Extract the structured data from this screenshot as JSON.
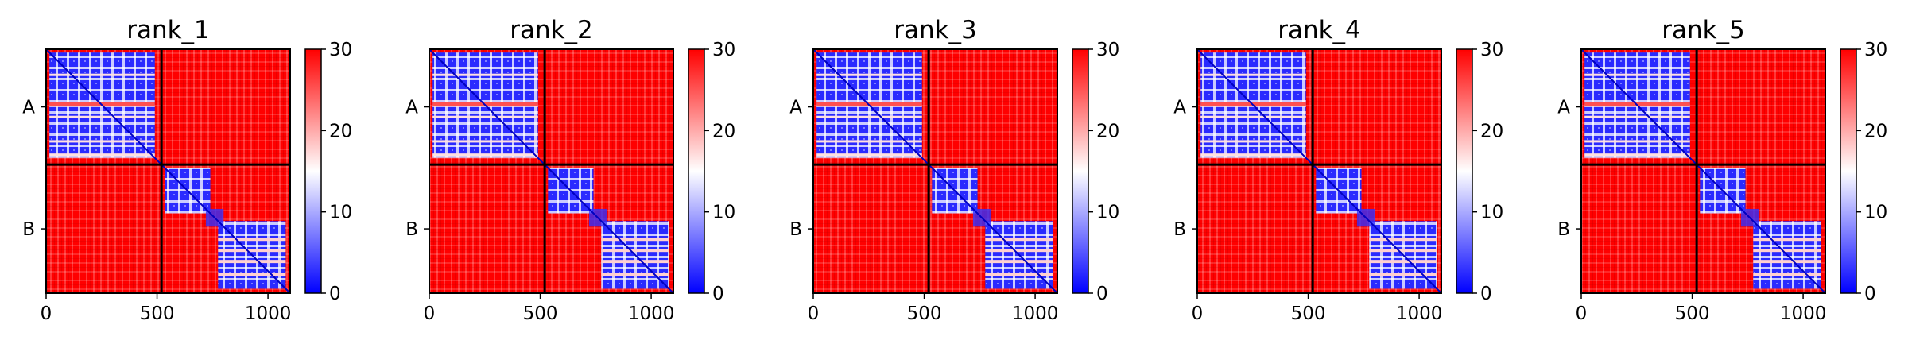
{
  "chart_data": {
    "type": "heatmap",
    "colormap": "bwr",
    "colors": {
      "low": "#0000ff",
      "mid": "#ffffff",
      "high": "#ff0000",
      "divider": "#000000"
    },
    "color_range": [
      0,
      30
    ],
    "colorbar_ticks": [
      "0",
      "10",
      "20",
      "30"
    ],
    "x_range": [
      0,
      1100
    ],
    "x_ticks": [
      0,
      500,
      1000
    ],
    "x_tick_labels": [
      "0",
      "500",
      "1000"
    ],
    "chain_boundary": 520,
    "chain_labels": [
      "A",
      "B"
    ],
    "grid": false,
    "panels": [
      {
        "title": "rank_1"
      },
      {
        "title": "rank_2"
      },
      {
        "title": "rank_3"
      },
      {
        "title": "rank_4"
      },
      {
        "title": "rank_5"
      }
    ]
  }
}
